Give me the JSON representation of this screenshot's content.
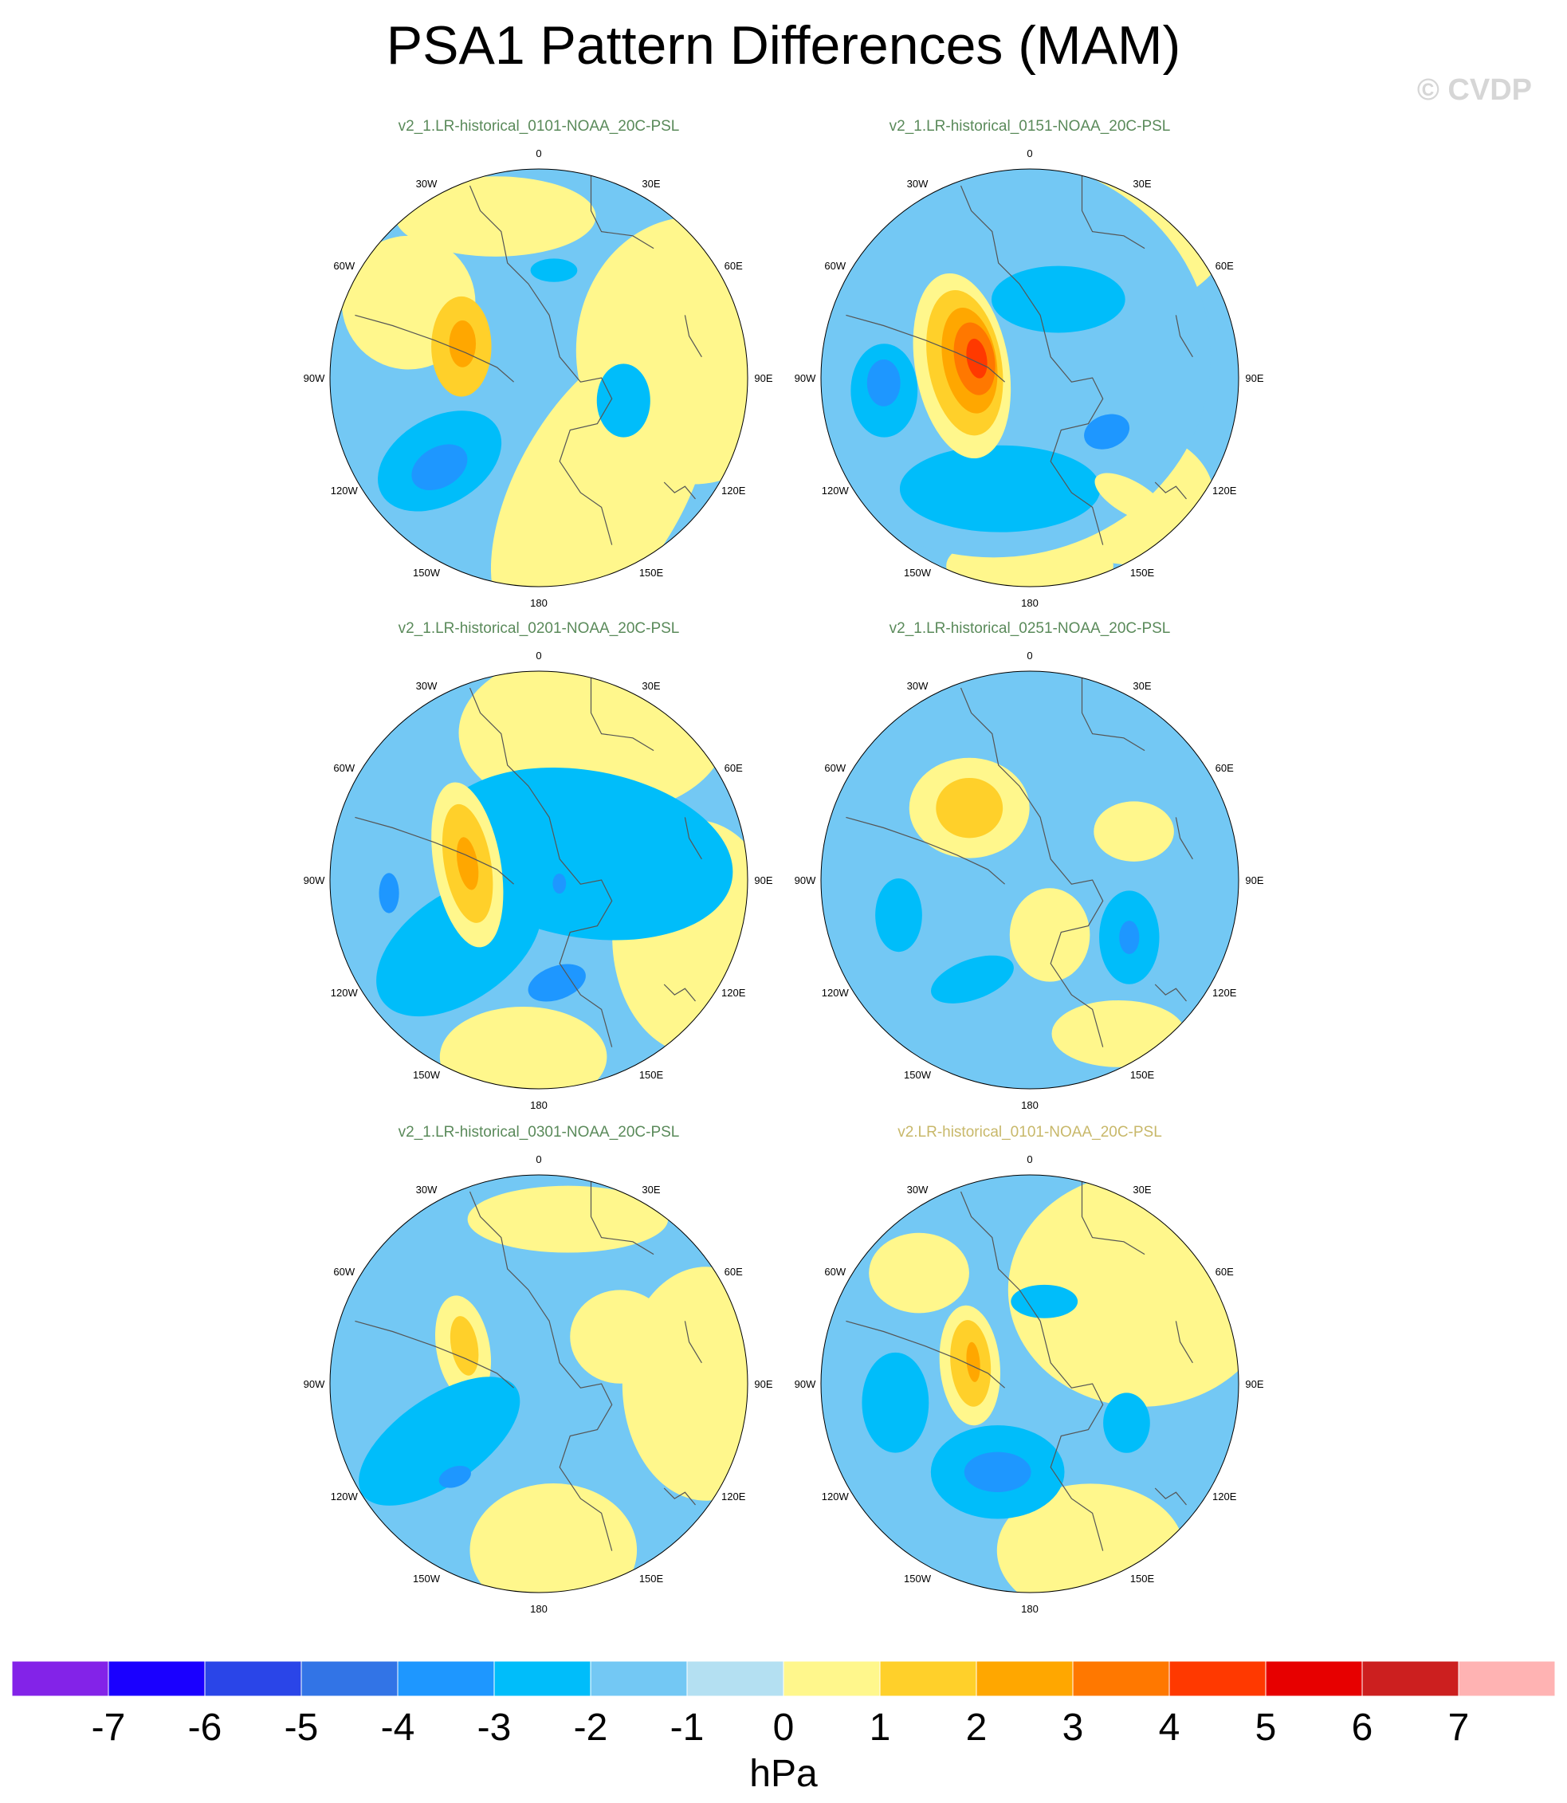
{
  "title": "PSA1 Pattern Differences (MAM)",
  "watermark": "© CVDP",
  "colors": {
    "model_title": "#5a8a5a",
    "obs_title": "#c8b86a",
    "coast": "#555555"
  },
  "lon_labels": [
    "0",
    "30E",
    "60E",
    "90E",
    "120E",
    "150E",
    "180",
    "150W",
    "120W",
    "90W",
    "60W",
    "30W"
  ],
  "panels": [
    {
      "title": "v2_1.LR-historical_0101-NOAA_20C-PSL",
      "title_kind": "model",
      "blobs": [
        {
          "v": -2,
          "a": 230,
          "r": 0.62,
          "rx": 0.2,
          "ry": 0.13,
          "rot": -30
        },
        {
          "v": -3,
          "a": 228,
          "r": 0.64,
          "rx": 0.09,
          "ry": 0.06,
          "rot": -30
        },
        {
          "v": 2,
          "a": 292,
          "r": 0.4,
          "rx": 0.09,
          "ry": 0.15,
          "rot": 0
        },
        {
          "v": 3,
          "a": 294,
          "r": 0.4,
          "rx": 0.04,
          "ry": 0.07,
          "rot": 0
        },
        {
          "v": -2,
          "a": 105,
          "r": 0.42,
          "rx": 0.08,
          "ry": 0.11,
          "rot": 0
        },
        {
          "v": 1,
          "a": 52,
          "r": 0.52,
          "rx": 0.07,
          "ry": 0.07,
          "rot": 0
        },
        {
          "v": -2,
          "a": 8,
          "r": 0.52,
          "rx": 0.07,
          "ry": 0.035,
          "rot": 0
        },
        {
          "v": 1,
          "a": 155,
          "r": 0.42,
          "rx": 0.05,
          "ry": 0.04,
          "rot": 0
        }
      ],
      "yellow": [
        {
          "a": 80,
          "r": 0.75,
          "rx": 0.35,
          "ry": 0.4,
          "rot": 0
        },
        {
          "a": 150,
          "r": 0.6,
          "rx": 0.25,
          "ry": 0.5,
          "rot": 30
        },
        {
          "a": 300,
          "r": 0.72,
          "rx": 0.2,
          "ry": 0.2,
          "rot": 0
        },
        {
          "a": 345,
          "r": 0.8,
          "rx": 0.3,
          "ry": 0.12,
          "rot": 0
        }
      ]
    },
    {
      "title": "v2_1.LR-historical_0151-NOAA_20C-PSL",
      "title_kind": "model",
      "blobs": [
        {
          "v": -1,
          "a": 300,
          "r": 0.2,
          "rx": 0.65,
          "ry": 0.6,
          "rot": 0
        },
        {
          "v": -2,
          "a": 20,
          "r": 0.4,
          "rx": 0.2,
          "ry": 0.1,
          "rot": 0
        },
        {
          "v": -2,
          "a": 265,
          "r": 0.7,
          "rx": 0.1,
          "ry": 0.14,
          "rot": 0
        },
        {
          "v": -2,
          "a": 195,
          "r": 0.55,
          "rx": 0.3,
          "ry": 0.13,
          "rot": 0
        },
        {
          "v": -3,
          "a": 268,
          "r": 0.7,
          "rx": 0.05,
          "ry": 0.07,
          "rot": 0
        },
        {
          "v": -3,
          "a": 125,
          "r": 0.45,
          "rx": 0.07,
          "ry": 0.05,
          "rot": -20
        },
        {
          "v": 1,
          "a": 280,
          "r": 0.33,
          "rx": 0.14,
          "ry": 0.28,
          "rot": -10
        },
        {
          "v": 2,
          "a": 283,
          "r": 0.32,
          "rx": 0.11,
          "ry": 0.22,
          "rot": -10
        },
        {
          "v": 3,
          "a": 286,
          "r": 0.3,
          "rx": 0.08,
          "ry": 0.16,
          "rot": -10
        },
        {
          "v": 4,
          "a": 289,
          "r": 0.28,
          "rx": 0.06,
          "ry": 0.11,
          "rot": -10
        },
        {
          "v": 5,
          "a": 290,
          "r": 0.27,
          "rx": 0.03,
          "ry": 0.06,
          "rot": -10
        },
        {
          "v": 1,
          "a": 140,
          "r": 0.75,
          "rx": 0.12,
          "ry": 0.05,
          "rot": 30
        }
      ],
      "yellow": [
        {
          "a": 0,
          "r": 0.7,
          "rx": 0.6,
          "ry": 0.3,
          "rot": 0
        },
        {
          "a": 140,
          "r": 0.75,
          "rx": 0.25,
          "ry": 0.2,
          "rot": 0
        },
        {
          "a": 180,
          "r": 0.9,
          "rx": 0.25,
          "ry": 0.1,
          "rot": 0
        }
      ]
    },
    {
      "title": "v2_1.LR-historical_0201-NOAA_20C-PSL",
      "title_kind": "model",
      "blobs": [
        {
          "v": -2,
          "a": 60,
          "r": 0.25,
          "rx": 0.45,
          "ry": 0.25,
          "rot": 10
        },
        {
          "v": -2,
          "a": 230,
          "r": 0.5,
          "rx": 0.28,
          "ry": 0.16,
          "rot": -35
        },
        {
          "v": -3,
          "a": 265,
          "r": 0.72,
          "rx": 0.03,
          "ry": 0.06,
          "rot": 0
        },
        {
          "v": -3,
          "a": 170,
          "r": 0.5,
          "rx": 0.09,
          "ry": 0.05,
          "rot": -20
        },
        {
          "v": -3,
          "a": 100,
          "r": 0.1,
          "rx": 0.02,
          "ry": 0.03,
          "rot": 0
        },
        {
          "v": 1,
          "a": 282,
          "r": 0.35,
          "rx": 0.1,
          "ry": 0.25,
          "rot": -10
        },
        {
          "v": 2,
          "a": 283,
          "r": 0.35,
          "rx": 0.07,
          "ry": 0.18,
          "rot": -10
        },
        {
          "v": 3,
          "a": 283,
          "r": 0.35,
          "rx": 0.03,
          "ry": 0.08,
          "rot": -10
        }
      ],
      "yellow": [
        {
          "a": 20,
          "r": 0.75,
          "rx": 0.4,
          "ry": 0.25,
          "rot": 0
        },
        {
          "a": 110,
          "r": 0.8,
          "rx": 0.25,
          "ry": 0.35,
          "rot": 0
        },
        {
          "a": 185,
          "r": 0.85,
          "rx": 0.25,
          "ry": 0.15,
          "rot": 0
        }
      ]
    },
    {
      "title": "v2_1.LR-historical_0251-NOAA_20C-PSL",
      "title_kind": "model",
      "blobs": [
        {
          "v": 1,
          "a": 320,
          "r": 0.45,
          "rx": 0.18,
          "ry": 0.15,
          "rot": 0
        },
        {
          "v": 2,
          "a": 320,
          "r": 0.45,
          "rx": 0.1,
          "ry": 0.09,
          "rot": 0
        },
        {
          "v": 1,
          "a": 65,
          "r": 0.55,
          "rx": 0.12,
          "ry": 0.09,
          "rot": 0
        },
        {
          "v": 1,
          "a": 160,
          "r": 0.28,
          "rx": 0.12,
          "ry": 0.14,
          "rot": 0
        },
        {
          "v": -2,
          "a": 120,
          "r": 0.55,
          "rx": 0.09,
          "ry": 0.14,
          "rot": 0
        },
        {
          "v": -3,
          "a": 120,
          "r": 0.55,
          "rx": 0.03,
          "ry": 0.05,
          "rot": 0
        },
        {
          "v": -2,
          "a": 255,
          "r": 0.65,
          "rx": 0.07,
          "ry": 0.11,
          "rot": 0
        },
        {
          "v": -2,
          "a": 210,
          "r": 0.55,
          "rx": 0.13,
          "ry": 0.06,
          "rot": -20
        }
      ],
      "yellow": [
        {
          "a": 150,
          "r": 0.85,
          "rx": 0.2,
          "ry": 0.1,
          "rot": 0
        }
      ]
    },
    {
      "title": "v2_1.LR-historical_0301-NOAA_20C-PSL",
      "title_kind": "model",
      "blobs": [
        {
          "v": 1,
          "a": 60,
          "r": 0.45,
          "rx": 0.15,
          "ry": 0.14,
          "rot": 0
        },
        {
          "v": 1,
          "a": 295,
          "r": 0.4,
          "rx": 0.08,
          "ry": 0.16,
          "rot": -10
        },
        {
          "v": 2,
          "a": 297,
          "r": 0.4,
          "rx": 0.04,
          "ry": 0.09,
          "rot": -10
        },
        {
          "v": -2,
          "a": 240,
          "r": 0.55,
          "rx": 0.28,
          "ry": 0.13,
          "rot": -35
        },
        {
          "v": -3,
          "a": 222,
          "r": 0.6,
          "rx": 0.05,
          "ry": 0.03,
          "rot": -20
        }
      ],
      "yellow": [
        {
          "a": 90,
          "r": 0.8,
          "rx": 0.25,
          "ry": 0.35,
          "rot": 0
        },
        {
          "a": 175,
          "r": 0.8,
          "rx": 0.25,
          "ry": 0.2,
          "rot": 0
        },
        {
          "a": 10,
          "r": 0.8,
          "rx": 0.3,
          "ry": 0.1,
          "rot": 0
        }
      ]
    },
    {
      "title": "v2.LR-historical_0101-NOAA_20C-PSL",
      "title_kind": "obs",
      "blobs": [
        {
          "v": -2,
          "a": 262,
          "r": 0.65,
          "rx": 0.1,
          "ry": 0.15,
          "rot": 0
        },
        {
          "v": -2,
          "a": 200,
          "r": 0.45,
          "rx": 0.2,
          "ry": 0.14,
          "rot": 0
        },
        {
          "v": -3,
          "a": 200,
          "r": 0.45,
          "rx": 0.1,
          "ry": 0.06,
          "rot": 0
        },
        {
          "v": -2,
          "a": 112,
          "r": 0.5,
          "rx": 0.07,
          "ry": 0.09,
          "rot": 0
        },
        {
          "v": -2,
          "a": 10,
          "r": 0.4,
          "rx": 0.1,
          "ry": 0.05,
          "rot": 0
        },
        {
          "v": 1,
          "a": 287,
          "r": 0.3,
          "rx": 0.09,
          "ry": 0.18,
          "rot": -5
        },
        {
          "v": 2,
          "a": 289,
          "r": 0.3,
          "rx": 0.06,
          "ry": 0.13,
          "rot": -5
        },
        {
          "v": 3,
          "a": 291,
          "r": 0.29,
          "rx": 0.02,
          "ry": 0.06,
          "rot": -5
        }
      ],
      "yellow": [
        {
          "a": 50,
          "r": 0.7,
          "rx": 0.4,
          "ry": 0.35,
          "rot": 0
        },
        {
          "a": 160,
          "r": 0.85,
          "rx": 0.28,
          "ry": 0.2,
          "rot": 0
        },
        {
          "a": 315,
          "r": 0.75,
          "rx": 0.15,
          "ry": 0.12,
          "rot": 0
        }
      ]
    }
  ],
  "colorbar": {
    "colors": [
      "#8323e8",
      "#1a00ff",
      "#2a45e8",
      "#3274e6",
      "#1e97ff",
      "#00bdfa",
      "#73c8f4",
      "#b4e0f2",
      "#fff78c",
      "#ffd02a",
      "#ffa700",
      "#ff7800",
      "#ff3900",
      "#e70000",
      "#cc1f1f",
      "#ffb3b3"
    ],
    "ticks": [
      "-7",
      "-6",
      "-5",
      "-4",
      "-3",
      "-2",
      "-1",
      "0",
      "1",
      "2",
      "3",
      "4",
      "5",
      "6",
      "7"
    ],
    "units": "hPa"
  }
}
